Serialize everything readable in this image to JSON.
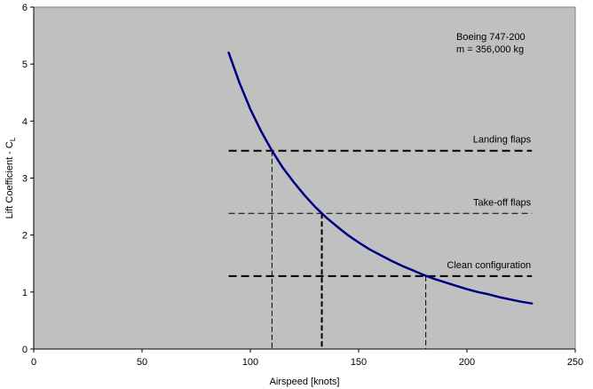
{
  "chart_data": {
    "type": "line",
    "title": "",
    "xlabel": "Airspeed [knots]",
    "ylabel_main": "Lift Coefficient - C",
    "ylabel_sub": "L",
    "xlim": [
      0,
      250
    ],
    "ylim": [
      0,
      6
    ],
    "x_ticks": [
      "0",
      "50",
      "100",
      "150",
      "200",
      "250"
    ],
    "y_ticks": [
      "0",
      "1",
      "2",
      "3",
      "4",
      "5",
      "6"
    ],
    "grid": false,
    "plot_background": "#c0c0c0",
    "annotation_lines": [
      "Boeing 747-200",
      "m = 356,000 kg"
    ],
    "series": [
      {
        "color": "#000080",
        "x": [
          90,
          95,
          100,
          105,
          110,
          115,
          120,
          125,
          130,
          135,
          140,
          145,
          150,
          155,
          160,
          165,
          170,
          175,
          180,
          185,
          190,
          195,
          200,
          205,
          210,
          215,
          220,
          225,
          230
        ],
        "y": [
          5.2,
          4.67,
          4.21,
          3.82,
          3.48,
          3.18,
          2.93,
          2.7,
          2.49,
          2.31,
          2.15,
          2.0,
          1.87,
          1.75,
          1.65,
          1.55,
          1.46,
          1.38,
          1.3,
          1.23,
          1.17,
          1.11,
          1.05,
          1.0,
          0.96,
          0.91,
          0.87,
          0.83,
          0.8
        ]
      }
    ],
    "reference_lines": [
      {
        "label": "Landing flaps",
        "cl": 3.48,
        "x_start": 90,
        "x_end": 230,
        "intersect_x": 110,
        "style": "bold"
      },
      {
        "label": "Take-off flaps",
        "cl": 2.38,
        "x_start": 90,
        "x_end": 230,
        "intersect_x": 133,
        "style": "thin"
      },
      {
        "label": "Clean configuration",
        "cl": 1.28,
        "x_start": 90,
        "x_end": 230,
        "intersect_x": 181,
        "style": "bold"
      }
    ]
  }
}
